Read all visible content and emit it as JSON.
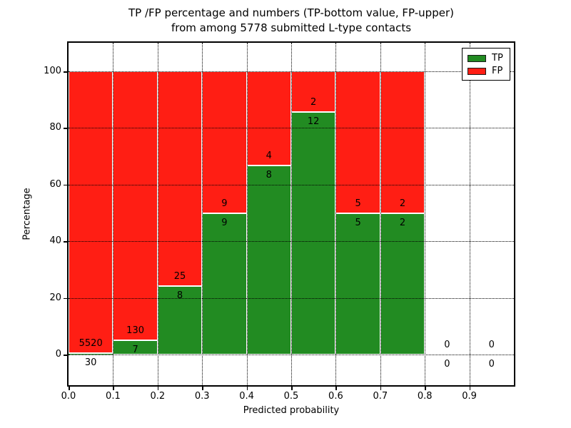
{
  "header": {
    "title_line1": "TP /FP percentage and numbers (TP-bottom value, FP-upper)",
    "title_line2": "from among 5778 submitted L-type contacts"
  },
  "axes": {
    "xlabel": "Predicted probability",
    "ylabel": "Percentage"
  },
  "chart_data": {
    "type": "bar",
    "stacked": true,
    "title": "TP /FP percentage and numbers (TP-bottom value, FP-upper) from among 5778 submitted L-type contacts",
    "xlabel": "Predicted probability",
    "ylabel": "Percentage",
    "xlim": [
      0.0,
      1.0
    ],
    "ylim": [
      -11,
      110
    ],
    "xticks": [
      "0.0",
      "0.1",
      "0.2",
      "0.3",
      "0.4",
      "0.5",
      "0.6",
      "0.7",
      "0.8",
      "0.9"
    ],
    "yticks": [
      0,
      20,
      40,
      60,
      80,
      100
    ],
    "grid": true,
    "grid_style": "dotted",
    "legend_position": "upper right",
    "total_contacts": 5778,
    "series": [
      {
        "name": "TP",
        "color": "#228b22"
      },
      {
        "name": "FP",
        "color": "#ff1e14"
      }
    ],
    "bins": [
      {
        "range": [
          0.0,
          0.1
        ],
        "tp_count": 30,
        "fp_count": 5520,
        "tp_pct": 0.54,
        "fp_pct": 99.46
      },
      {
        "range": [
          0.1,
          0.2
        ],
        "tp_count": 7,
        "fp_count": 130,
        "tp_pct": 5.11,
        "fp_pct": 94.89
      },
      {
        "range": [
          0.2,
          0.3
        ],
        "tp_count": 8,
        "fp_count": 25,
        "tp_pct": 24.24,
        "fp_pct": 75.76
      },
      {
        "range": [
          0.3,
          0.4
        ],
        "tp_count": 9,
        "fp_count": 9,
        "tp_pct": 50.0,
        "fp_pct": 50.0
      },
      {
        "range": [
          0.4,
          0.5
        ],
        "tp_count": 8,
        "fp_count": 4,
        "tp_pct": 66.67,
        "fp_pct": 33.33
      },
      {
        "range": [
          0.5,
          0.6
        ],
        "tp_count": 12,
        "fp_count": 2,
        "tp_pct": 85.71,
        "fp_pct": 14.29
      },
      {
        "range": [
          0.6,
          0.7
        ],
        "tp_count": 5,
        "fp_count": 5,
        "tp_pct": 50.0,
        "fp_pct": 50.0
      },
      {
        "range": [
          0.7,
          0.8
        ],
        "tp_count": 2,
        "fp_count": 2,
        "tp_pct": 50.0,
        "fp_pct": 50.0
      },
      {
        "range": [
          0.8,
          0.9
        ],
        "tp_count": 0,
        "fp_count": 0,
        "tp_pct": 0,
        "fp_pct": 0
      },
      {
        "range": [
          0.9,
          1.0
        ],
        "tp_count": 0,
        "fp_count": 0,
        "tp_pct": 0,
        "fp_pct": 0
      }
    ]
  }
}
